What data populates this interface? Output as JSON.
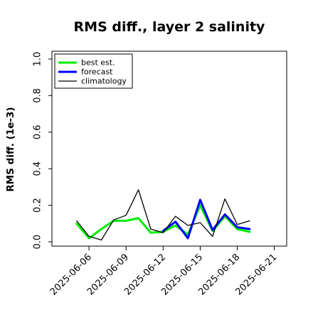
{
  "chart_data": {
    "type": "line",
    "title": "RMS diff., layer 2 salinity",
    "xlabel": "",
    "ylabel": "RMS diff. (1e-3)",
    "ylim": [
      0.0,
      1.0
    ],
    "yticks": [
      "0.0",
      "0.2",
      "0.4",
      "0.6",
      "0.8",
      "1.0"
    ],
    "xlim": [
      "2025-06-03",
      "2025-06-22"
    ],
    "xticks": [
      "2025-06-06",
      "2025-06-09",
      "2025-06-12",
      "2025-06-15",
      "2025-06-18",
      "2025-06-21"
    ],
    "highlight_tick": "2025-06-12",
    "highlight_color": "#228b22",
    "grid": false,
    "legend_position": "top-left",
    "series": [
      {
        "name": "best est.",
        "color": "#00ee00",
        "width": 3,
        "points": [
          [
            "2025-06-05",
            0.1
          ],
          [
            "2025-06-06",
            0.02
          ],
          [
            "2025-06-07",
            0.07
          ],
          [
            "2025-06-08",
            0.115
          ],
          [
            "2025-06-09",
            0.115
          ],
          [
            "2025-06-10",
            0.13
          ],
          [
            "2025-06-11",
            0.05
          ],
          [
            "2025-06-12",
            0.055
          ],
          [
            "2025-06-13",
            0.09
          ],
          [
            "2025-06-14",
            0.04
          ],
          [
            "2025-06-15",
            0.2
          ],
          [
            "2025-06-16",
            0.06
          ],
          [
            "2025-06-17",
            0.14
          ],
          [
            "2025-06-18",
            0.07
          ],
          [
            "2025-06-19",
            0.055
          ]
        ]
      },
      {
        "name": "forecast",
        "color": "#0000ff",
        "width": 3,
        "points": [
          [
            "2025-06-12",
            0.06
          ],
          [
            "2025-06-13",
            0.11
          ],
          [
            "2025-06-14",
            0.02
          ],
          [
            "2025-06-15",
            0.23
          ],
          [
            "2025-06-16",
            0.065
          ],
          [
            "2025-06-17",
            0.15
          ],
          [
            "2025-06-18",
            0.08
          ],
          [
            "2025-06-19",
            0.07
          ]
        ]
      },
      {
        "name": "climatology",
        "color": "#000000",
        "width": 1.3,
        "points": [
          [
            "2025-06-05",
            0.115
          ],
          [
            "2025-06-06",
            0.03
          ],
          [
            "2025-06-07",
            0.01
          ],
          [
            "2025-06-08",
            0.12
          ],
          [
            "2025-06-09",
            0.145
          ],
          [
            "2025-06-10",
            0.285
          ],
          [
            "2025-06-11",
            0.07
          ],
          [
            "2025-06-12",
            0.05
          ],
          [
            "2025-06-13",
            0.14
          ],
          [
            "2025-06-14",
            0.09
          ],
          [
            "2025-06-15",
            0.105
          ],
          [
            "2025-06-16",
            0.03
          ],
          [
            "2025-06-17",
            0.235
          ],
          [
            "2025-06-18",
            0.095
          ],
          [
            "2025-06-19",
            0.115
          ]
        ]
      }
    ]
  }
}
